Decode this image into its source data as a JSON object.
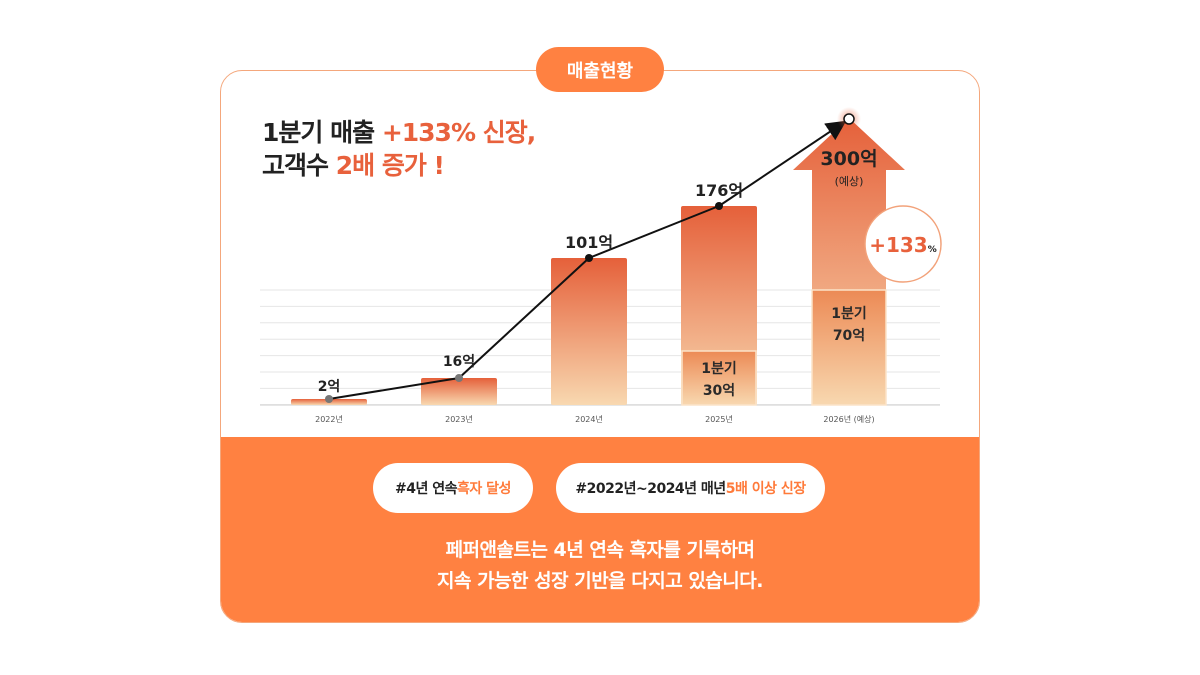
{
  "badge": "매출현황",
  "headline": {
    "line1_a": "1분기 매출 ",
    "line1_b": "+133% 신장,",
    "line2_a": "고객수 ",
    "line2_b": "2배 증가 !"
  },
  "chart_data": {
    "type": "bar",
    "categories": [
      "2022년",
      "2023년",
      "2024년",
      "2025년",
      "2026년 (예상)"
    ],
    "values": [
      2,
      16,
      101,
      176,
      300
    ],
    "value_labels": [
      "2억",
      "16억",
      "101억",
      "176억",
      "300억"
    ],
    "q1_values": [
      null,
      null,
      null,
      30,
      70
    ],
    "q1_labels": [
      null,
      null,
      null,
      "1분기\n30억",
      "1분기\n70억"
    ],
    "forecast_note": "(예상)",
    "growth_badge": {
      "value": "+133",
      "unit": "%"
    },
    "grid": true,
    "colors": {
      "bar_top": "#E5603A",
      "bar_bottom": "#F8D3A8",
      "accent": "#FF8141"
    }
  },
  "tags": [
    {
      "a": "#4년 연속 ",
      "b": "흑자 달성"
    },
    {
      "a": "#2022년~2024년 매년 ",
      "b": "5배 이상 신장"
    }
  ],
  "message": {
    "line1": "페퍼앤솔트는 4년 연속 흑자를 기록하며",
    "line2": "지속 가능한 성장 기반을 다지고 있습니다."
  }
}
